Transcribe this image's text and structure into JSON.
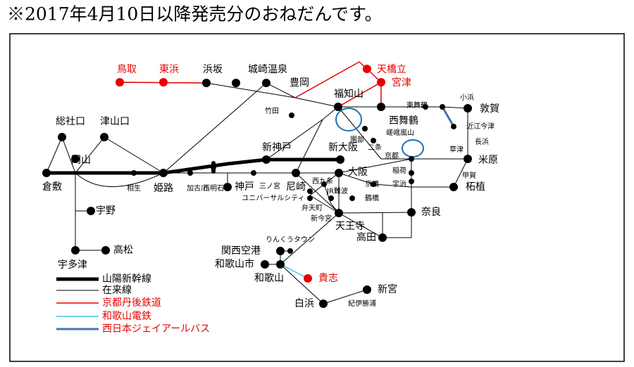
{
  "title": "※2017年4月10日以降発売分のおねだんです。",
  "stations": [
    {
      "label": "鳥取"
    },
    {
      "label": "東浜"
    },
    {
      "label": "浜坂"
    },
    {
      "label": "城崎温泉"
    },
    {
      "label": "豊岡"
    },
    {
      "label": "天橋立"
    },
    {
      "label": "宮津"
    },
    {
      "label": "福知山"
    },
    {
      "label": "竹田"
    },
    {
      "label": "東舞鶴"
    },
    {
      "label": "西舞鶴"
    },
    {
      "label": "小浜"
    },
    {
      "label": "敦賀"
    },
    {
      "label": "近江今津"
    },
    {
      "label": "長浜"
    },
    {
      "label": "草津"
    },
    {
      "label": "米原"
    },
    {
      "label": "甲賀"
    },
    {
      "label": "柘植"
    },
    {
      "label": "園部"
    },
    {
      "label": "嵯峨嵐山"
    },
    {
      "label": "二条"
    },
    {
      "label": "京都"
    },
    {
      "label": "稲荷"
    },
    {
      "label": "宇治"
    },
    {
      "label": "奈良"
    },
    {
      "label": "新大阪"
    },
    {
      "label": "大阪"
    },
    {
      "label": "京橋"
    },
    {
      "label": "西九条"
    },
    {
      "label": "JR難波"
    },
    {
      "label": "鶴橋"
    },
    {
      "label": "弁天町"
    },
    {
      "label": "新今宮"
    },
    {
      "label": "天王寺"
    },
    {
      "label": "高田"
    },
    {
      "label": "ユニバーサルシティ"
    },
    {
      "label": "尼崎"
    },
    {
      "label": "三ノ宮"
    },
    {
      "label": "神戸"
    },
    {
      "label": "新神戸"
    },
    {
      "label": "加古川"
    },
    {
      "label": "西明石"
    },
    {
      "label": "姫路"
    },
    {
      "label": "相生"
    },
    {
      "label": "岡山"
    },
    {
      "label": "倉敷"
    },
    {
      "label": "総社口"
    },
    {
      "label": "津山口"
    },
    {
      "label": "宇野"
    },
    {
      "label": "高松"
    },
    {
      "label": "宇多津"
    },
    {
      "label": "りんくうタウン"
    },
    {
      "label": "関西空港"
    },
    {
      "label": "和歌山市"
    },
    {
      "label": "和歌山"
    },
    {
      "label": "貴志"
    },
    {
      "label": "白浜"
    },
    {
      "label": "紀伊勝浦"
    },
    {
      "label": "新宮"
    }
  ],
  "legend": [
    {
      "label": "山陽新幹線"
    },
    {
      "label": "在来線"
    },
    {
      "label": "京都丹後鉄道"
    },
    {
      "label": "和歌山電鉄"
    },
    {
      "label": "西日本ジェイアールバス"
    }
  ]
}
